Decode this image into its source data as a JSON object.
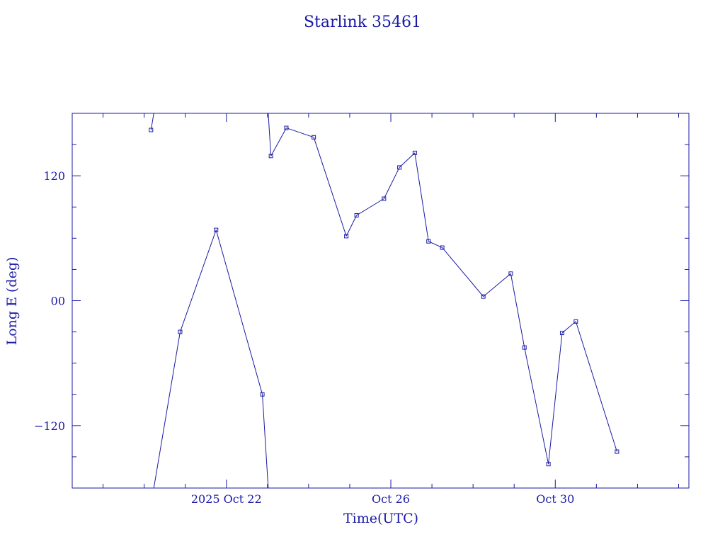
{
  "chart_data": {
    "type": "line",
    "title": "Starlink 35461",
    "xlabel": "Time(UTC)",
    "ylabel": "Long E (deg)",
    "x_ticks": [
      {
        "date": "2025-10-22",
        "label": "2025 Oct 22"
      },
      {
        "date": "2025-10-26",
        "label": "Oct 26"
      },
      {
        "date": "2025-10-30",
        "label": "Oct 30"
      }
    ],
    "y_ticks": [
      120,
      0,
      -120
    ],
    "y_tick_labels": [
      "120",
      "00",
      "−120"
    ],
    "xlim": [
      "2025-10-18 06:00",
      "2025-11-02 06:00"
    ],
    "ylim": [
      -180,
      180
    ],
    "grid": false,
    "series": [
      {
        "color": "#1a1aa6",
        "x": [
          "2025-10-20 04:00",
          "2025-10-20 21:00",
          "2025-10-21 18:00",
          "2025-10-22 21:00",
          "2025-10-23 02:00",
          "2025-10-23 11:00",
          "2025-10-24 03:00",
          "2025-10-24 22:00",
          "2025-10-25 04:00",
          "2025-10-25 20:00",
          "2025-10-26 05:00",
          "2025-10-26 14:00",
          "2025-10-26 22:00",
          "2025-10-27 06:00",
          "2025-10-28 06:00",
          "2025-10-28 22:00",
          "2025-10-29 06:00",
          "2025-10-29 20:00",
          "2025-10-30 04:00",
          "2025-10-30 12:00",
          "2025-10-31 12:00"
        ],
        "y": [
          164,
          -30,
          68,
          -90,
          139,
          166,
          157,
          62,
          82,
          98,
          128,
          142,
          57,
          51,
          4,
          26,
          -45,
          -157,
          -31,
          -20,
          -145
        ]
      }
    ]
  }
}
